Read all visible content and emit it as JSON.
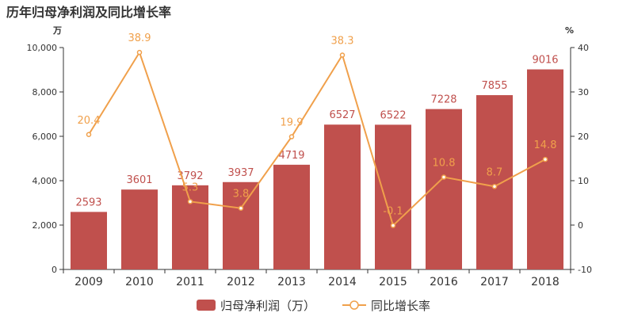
{
  "chart_data": {
    "type": "bar",
    "title": "历年归母净利润及同比增长率",
    "categories": [
      "2009",
      "2010",
      "2011",
      "2012",
      "2013",
      "2014",
      "2015",
      "2016",
      "2017",
      "2018"
    ],
    "series": [
      {
        "name": "归母净利润（万）",
        "type": "bar",
        "axis": "left",
        "values": [
          2593,
          3601,
          3792,
          3937,
          4719,
          6527,
          6522,
          7228,
          7855,
          9016
        ],
        "labels": [
          "2593",
          "3601",
          "3792",
          "3937",
          "4719",
          "6527",
          "6522",
          "7228",
          "7855",
          "9016"
        ]
      },
      {
        "name": "同比增长率",
        "type": "line",
        "axis": "right",
        "values": [
          20.4,
          38.9,
          5.3,
          3.8,
          19.9,
          38.3,
          -0.1,
          10.8,
          8.7,
          14.8
        ],
        "labels": [
          "20.4",
          "38.9",
          "5.3",
          "3.8",
          "19.9",
          "38.3",
          "-0.1",
          "10.8",
          "8.7",
          "14.8"
        ]
      }
    ],
    "y_left": {
      "unit": "万",
      "min": 0,
      "max": 10000,
      "ticks": [
        "0",
        "2,000",
        "4,000",
        "6,000",
        "8,000",
        "10,000"
      ]
    },
    "y_right": {
      "unit": "%",
      "min": -10,
      "max": 40,
      "ticks": [
        "-10",
        "0",
        "10",
        "20",
        "30",
        "40"
      ]
    },
    "grid": false,
    "legend_position": "bottom",
    "colors": {
      "bar": "#c0504d",
      "line": "#f0a04b",
      "axis": "#333333"
    }
  }
}
